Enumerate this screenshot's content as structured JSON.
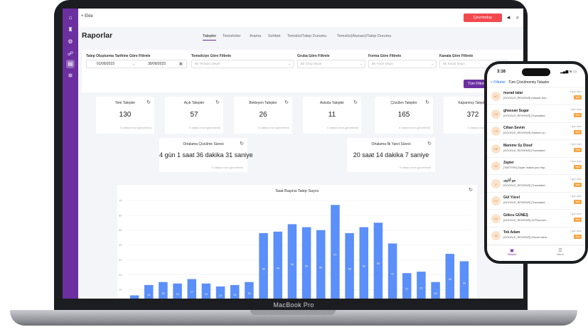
{
  "laptop": {
    "label": "MacBook Pro"
  },
  "sidebar": {
    "icons": [
      "home-icon",
      "trophy-icon",
      "settings-icon",
      "tree-icon",
      "report-icon",
      "gear-icon"
    ]
  },
  "topbar": {
    "add_label": "+ Ekle",
    "offline_label": "Çevrimdışı"
  },
  "page": {
    "title": "Raporlar"
  },
  "tabs": [
    "Talepler",
    "Temsilciler",
    "Arama",
    "Sohbet",
    "Temsilci/Talep Durumu",
    "Temsilci(Atanan)/Talep Durumu"
  ],
  "filters": {
    "date_label": "Talep Oluşturma Tarihine Göre Filtrele",
    "date_start": "01/09/2023",
    "date_arrow": "→",
    "date_end": "30/09/2023",
    "rep_label": "Temsilciye Göre Filtrele",
    "rep_placeholder": "Bir Temsilci Seçin",
    "group_label": "Gruba Göre Filtrele",
    "group_placeholder": "Bir Grup Seçin",
    "form_label": "Forma Göre Filtrele",
    "form_placeholder": "Bir Form Seçin",
    "channel_label": "Kanala Göre Filtrele",
    "channel_placeholder": "Bir Kanal Seçin",
    "apply_label": "Tüm Filtreler"
  },
  "stats": [
    {
      "title": "Yeni Talepler",
      "value": "130",
      "note": "6 dakika önce güncellendi"
    },
    {
      "title": "Açık Talepler",
      "value": "57",
      "note": "6 dakika önce güncellendi"
    },
    {
      "title": "Bekleyen Talepler",
      "value": "26",
      "note": "6 dakika önce güncellendi"
    },
    {
      "title": "Askıda Talepler",
      "value": "11",
      "note": "6 dakika önce güncellendi"
    },
    {
      "title": "Çözülen Talepler",
      "value": "165",
      "note": "6 dakika önce güncellendi"
    },
    {
      "title": "Kapanmış Talepler",
      "value": "372",
      "note": "6 dakika önce güncellendi"
    }
  ],
  "durations": [
    {
      "title": "Ortalama Çözülme Süresi",
      "value": "4 gün  1 saat  36 dakika  31 saniye",
      "note": "6 dakika önce güncellendi"
    },
    {
      "title": "Ortalama İlk Yanıt Süresi",
      "value": "20 saat  14 dakika  7 saniye",
      "note": "6 dakika önce güncellendi"
    }
  ],
  "chart_data": {
    "type": "bar",
    "title": "Saat Başına Talep Sayısı",
    "xlabel": "",
    "ylabel": "",
    "ylim": [
      0,
      70
    ],
    "yticks": [
      0,
      10,
      20,
      30,
      40,
      50,
      60,
      70
    ],
    "grid": true,
    "color": "#5b8ff9",
    "values": [
      6,
      13,
      15,
      14,
      17,
      14,
      12,
      13,
      15,
      48,
      49,
      54,
      52,
      50,
      67,
      48,
      52,
      55,
      41,
      21,
      22,
      15,
      34,
      29
    ]
  },
  "phone": {
    "time": "3:16",
    "status": "▂▄▆ ≋ ▭",
    "back_label": "< Filtreler",
    "title": "Tüm Çözülmemiş Talepler",
    "items": [
      {
        "initials": "MT",
        "name": "murad tatar",
        "text": "[GOOGLE_REVIEWS] masalar bos...",
        "ago": "6 gün önce",
        "badge": "Yeni"
      },
      {
        "initials": "GS",
        "name": "ghassan Sugar",
        "text": "[GOOGLE_REVIEWS] [Translated...",
        "ago": "7 gün önce",
        "badge": "Yeni"
      },
      {
        "initials": "CS",
        "name": "Cihan Sevim",
        "text": "[GOOGLE_REVIEWS] Gözlerin yu...",
        "ago": "7 gün önce",
        "badge": "Yeni"
      },
      {
        "initials": "MD",
        "name": "Marème Sy Diouf",
        "text": "[GOOGLE_REVIEWS] [Translated...",
        "ago": "7 gün önce",
        "badge": "Yeni"
      },
      {
        "initials": "ZZ",
        "name": "Zapier",
        "text": "[TWITTER] Zapier makes you Hap...",
        "ago": "7 gün önce",
        "badge": "Yeni"
      },
      {
        "initials": "م",
        "name": "مو آتاوی",
        "text": "[GOOGLE_REVIEWS] [Translated...",
        "ago": "7 gün önce",
        "badge": "Yeni"
      },
      {
        "initials": "GY",
        "name": "Gül Yücel",
        "text": "[GOOGLE_REVIEWS] [Translated...",
        "ago": "7 gün önce",
        "badge": "Yeni"
      },
      {
        "initials": "GG",
        "name": "Gökcu GÜNEŞ",
        "text": "[GOOGLE_REVIEWS] 15 Personel...",
        "ago": "7 gün önce",
        "badge": "Yeni"
      },
      {
        "initials": "TA",
        "name": "Tek Adam",
        "text": "[GOOGLE_REVIEWS] Güncel daha...",
        "ago": "7 gün önce",
        "badge": "Yeni"
      }
    ],
    "nav": [
      {
        "icon": "ticket-icon",
        "label": "Talepler"
      },
      {
        "icon": "menu-icon",
        "label": "Menü"
      }
    ]
  }
}
